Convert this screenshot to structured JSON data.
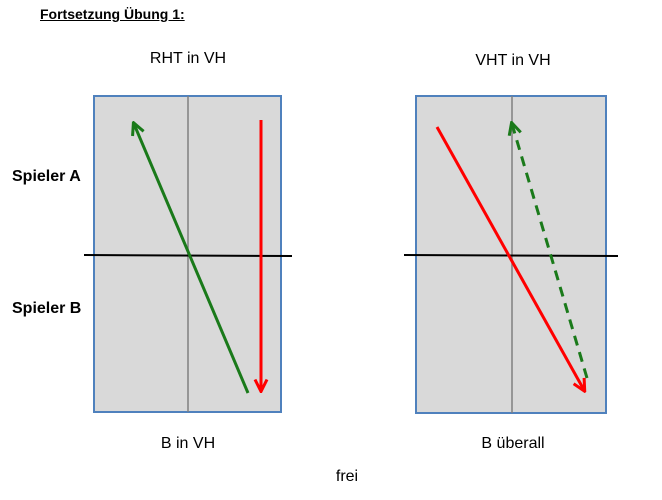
{
  "heading": "Fortsetzung Übung 1:",
  "players": {
    "a": "Spieler A",
    "b": "Spieler B"
  },
  "left_court": {
    "title": "RHT in VH",
    "caption": "B in VH"
  },
  "right_court": {
    "title": "VHT in VH",
    "caption": "B überall"
  },
  "footer": "frei",
  "colors": {
    "court_fill": "#d9d9d9",
    "court_border": "#4f81bd",
    "green_arrow": "#1a7a1a",
    "red_arrow": "#ff0000",
    "net": "#000000",
    "center_line": "#808080"
  }
}
